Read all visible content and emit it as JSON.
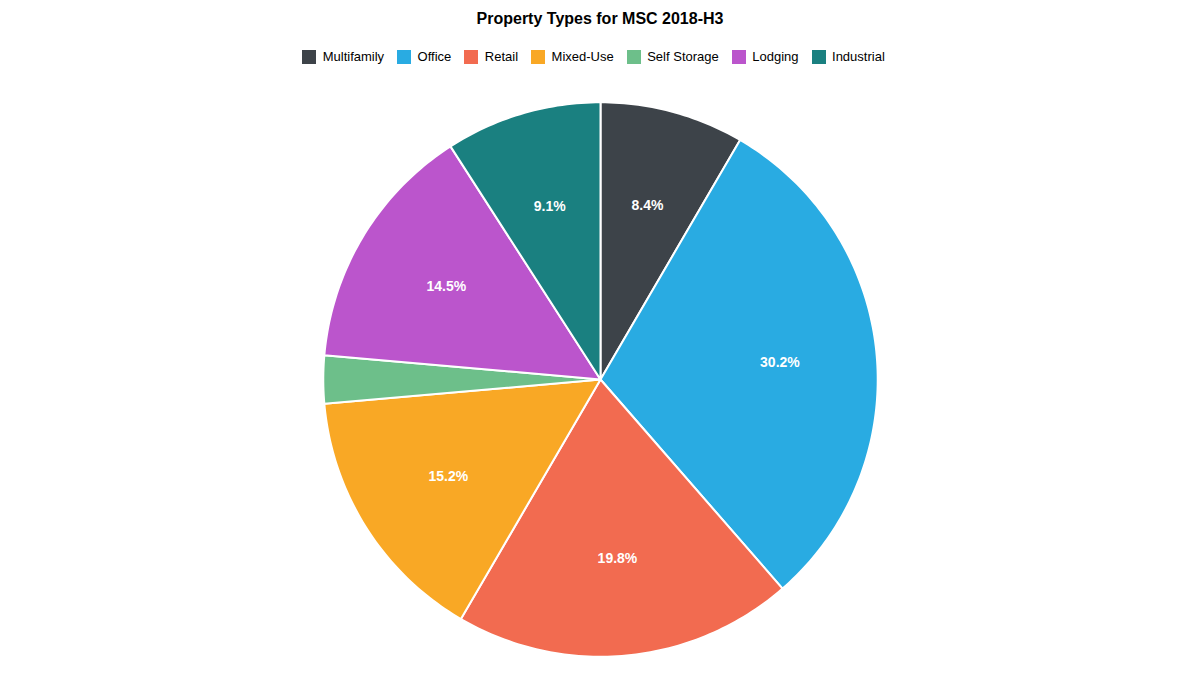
{
  "chart_data": {
    "type": "pie",
    "title": "Property Types for MSC 2018-H3",
    "categories": [
      "Multifamily",
      "Office",
      "Retail",
      "Mixed-Use",
      "Self Storage",
      "Lodging",
      "Industrial"
    ],
    "values": [
      8.4,
      30.2,
      19.8,
      15.2,
      2.8,
      14.5,
      9.1
    ],
    "colors": [
      "#3d4349",
      "#29abe2",
      "#f26b50",
      "#f9a825",
      "#6dbf8a",
      "#bb55cc",
      "#1a8080"
    ],
    "data_labels": true,
    "value_labels": [
      "8.4%",
      "30.2%",
      "19.8%",
      "15.2%",
      null,
      "14.5%",
      "9.1%"
    ],
    "legend": "top"
  }
}
